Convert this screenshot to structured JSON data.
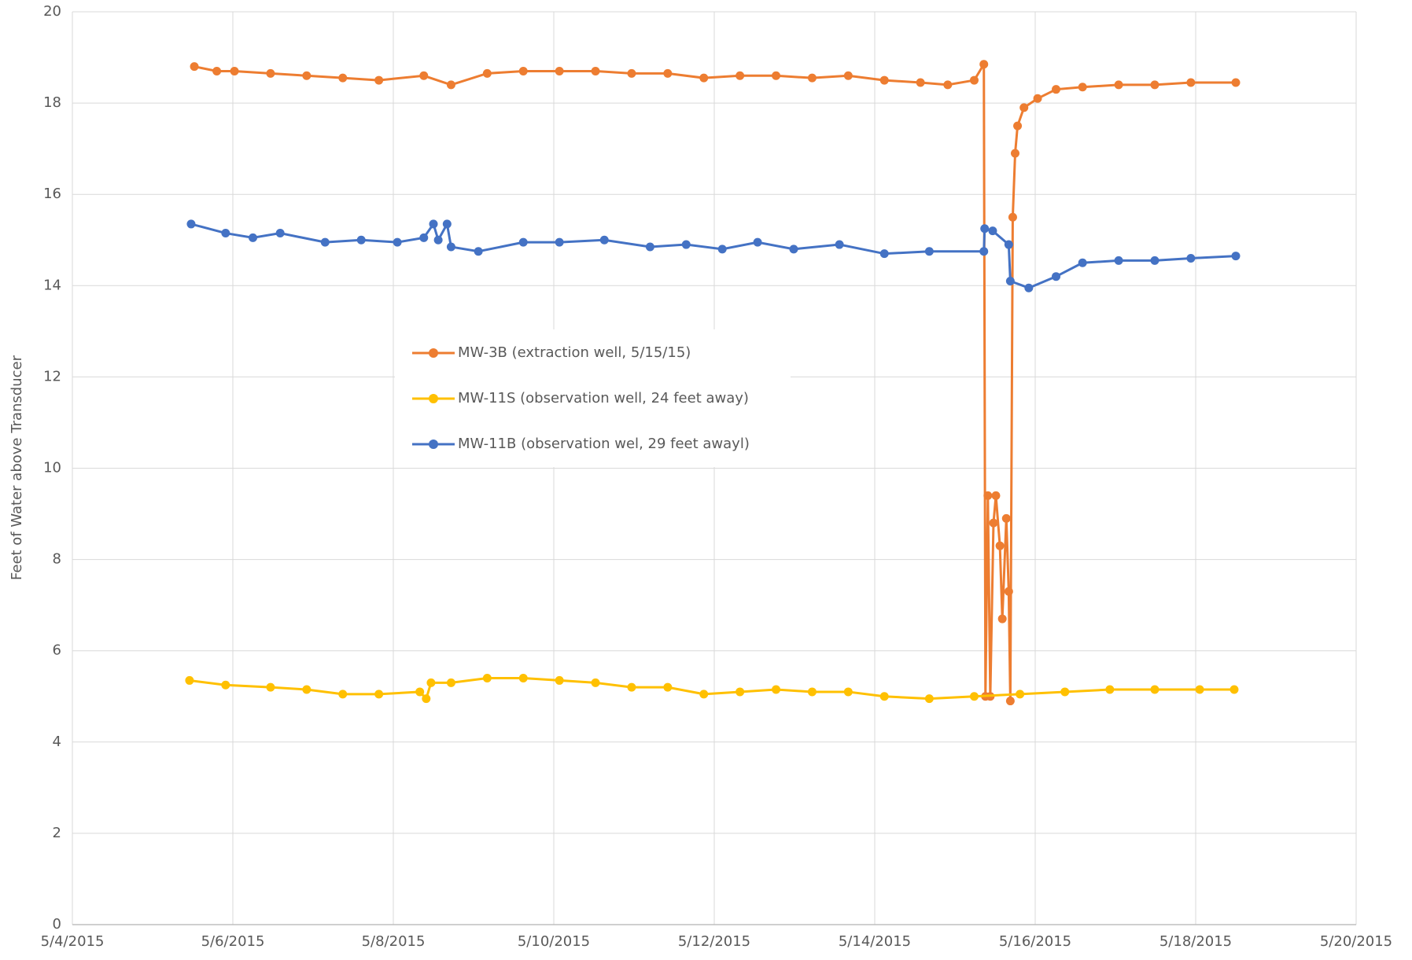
{
  "chart_data": {
    "type": "line",
    "y_label": "Feet of Water above Transducer",
    "xlim": [
      42128,
      42144
    ],
    "xticks": [
      {
        "value": 42128,
        "label": "5/4/2015"
      },
      {
        "value": 42130,
        "label": "5/6/2015"
      },
      {
        "value": 42132,
        "label": "5/8/2015"
      },
      {
        "value": 42134,
        "label": "5/10/2015"
      },
      {
        "value": 42136,
        "label": "5/12/2015"
      },
      {
        "value": 42138,
        "label": "5/14/2015"
      },
      {
        "value": 42140,
        "label": "5/16/2015"
      },
      {
        "value": 42142,
        "label": "5/18/2015"
      },
      {
        "value": 42144,
        "label": "5/20/2015"
      }
    ],
    "ylim": [
      0,
      20
    ],
    "yticks": [
      0,
      2,
      4,
      6,
      8,
      10,
      12,
      14,
      16,
      18,
      20
    ],
    "grid": true,
    "legend": "center",
    "series": [
      {
        "name": "MW-3B (extraction well, 5/15/15)",
        "color": "#ed7d31",
        "x": [
          42129.52,
          42129.8,
          42130.02,
          42130.47,
          42130.92,
          42131.37,
          42131.82,
          42132.38,
          42132.72,
          42133.17,
          42133.62,
          42134.07,
          42134.52,
          42134.97,
          42135.42,
          42135.87,
          42136.32,
          42136.77,
          42137.22,
          42137.67,
          42138.12,
          42138.57,
          42138.91,
          42139.24,
          42139.36,
          42139.38,
          42139.41,
          42139.44,
          42139.48,
          42139.51,
          42139.56,
          42139.59,
          42139.64,
          42139.67,
          42139.69,
          42139.72,
          42139.75,
          42139.78,
          42139.86,
          42140.03,
          42140.26,
          42140.59,
          42141.04,
          42141.49,
          42141.94,
          42142.5
        ],
        "values": [
          18.8,
          18.7,
          18.7,
          18.65,
          18.6,
          18.55,
          18.5,
          18.6,
          18.4,
          18.65,
          18.7,
          18.7,
          18.7,
          18.65,
          18.65,
          18.55,
          18.6,
          18.6,
          18.55,
          18.6,
          18.5,
          18.45,
          18.4,
          18.5,
          18.85,
          5.0,
          9.4,
          5.0,
          8.8,
          9.4,
          8.3,
          6.7,
          8.9,
          7.3,
          4.9,
          15.5,
          16.9,
          17.5,
          17.9,
          18.1,
          18.3,
          18.35,
          18.4,
          18.4,
          18.45,
          18.45
        ]
      },
      {
        "name": "MW-11S (observation well, 24 feet away)",
        "color": "#ffc000",
        "x": [
          42129.46,
          42129.91,
          42130.47,
          42130.92,
          42131.37,
          42131.82,
          42132.33,
          42132.41,
          42132.47,
          42132.72,
          42133.17,
          42133.62,
          42134.07,
          42134.52,
          42134.97,
          42135.42,
          42135.87,
          42136.32,
          42136.77,
          42137.22,
          42137.67,
          42138.12,
          42138.68,
          42139.24,
          42139.81,
          42140.37,
          42140.93,
          42141.49,
          42142.05,
          42142.48
        ],
        "values": [
          5.35,
          5.25,
          5.2,
          5.15,
          5.05,
          5.05,
          5.1,
          4.95,
          5.3,
          5.3,
          5.4,
          5.4,
          5.35,
          5.3,
          5.2,
          5.2,
          5.05,
          5.1,
          5.15,
          5.1,
          5.1,
          5.0,
          4.95,
          5.0,
          5.05,
          5.1,
          5.15,
          5.15,
          5.15,
          5.15
        ]
      },
      {
        "name": "MW-11B (observation wel, 29 feet awayl)",
        "color": "#4472c4",
        "x": [
          42129.48,
          42129.91,
          42130.25,
          42130.59,
          42131.15,
          42131.6,
          42132.05,
          42132.38,
          42132.5,
          42132.56,
          42132.67,
          42132.72,
          42133.06,
          42133.62,
          42134.07,
          42134.63,
          42135.2,
          42135.65,
          42136.1,
          42136.54,
          42136.99,
          42137.56,
          42138.12,
          42138.68,
          42139.36,
          42139.37,
          42139.47,
          42139.67,
          42139.69,
          42139.92,
          42140.26,
          42140.59,
          42141.04,
          42141.49,
          42141.94,
          42142.5
        ],
        "values": [
          15.35,
          15.15,
          15.05,
          15.15,
          14.95,
          15.0,
          14.95,
          15.05,
          15.35,
          15.0,
          15.35,
          14.85,
          14.75,
          14.95,
          14.95,
          15.0,
          14.85,
          14.9,
          14.8,
          14.95,
          14.8,
          14.9,
          14.7,
          14.75,
          14.75,
          15.25,
          15.2,
          14.9,
          14.1,
          13.95,
          14.2,
          14.5,
          14.55,
          14.55,
          14.6,
          14.65
        ]
      }
    ]
  }
}
